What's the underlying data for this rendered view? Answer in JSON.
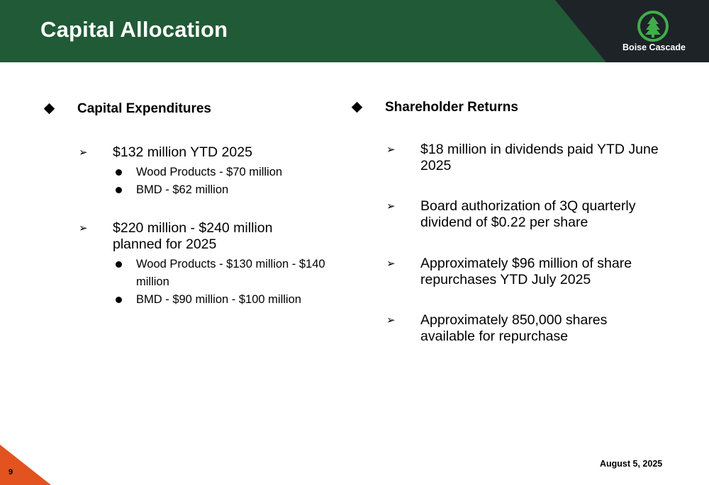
{
  "header": {
    "title": "Capital Allocation",
    "logo_text": "Boise Cascade",
    "logo_icon": "tree-icon",
    "colors": {
      "primary_green": "#215a36",
      "dark": "#1e2328",
      "logo_green": "#3fae49",
      "accent_orange": "#e2531f"
    }
  },
  "left": {
    "heading": "Capital Expenditures",
    "items": [
      {
        "text": "$132 million YTD 2025",
        "subs": [
          "Wood Products - $70 million",
          "BMD - $62 million"
        ]
      },
      {
        "text": "$220 million - $240 million planned for 2025",
        "subs": [
          "Wood Products - $130 million - $140 million",
          "BMD - $90 million - $100 million"
        ]
      }
    ]
  },
  "right": {
    "heading": "Shareholder Returns",
    "items": [
      {
        "text": "$18 million in dividends paid YTD June 2025"
      },
      {
        "text": "Board authorization of 3Q quarterly dividend of $0.22 per share"
      },
      {
        "text": "Approximately $96 million of share repurchases YTD July 2025"
      },
      {
        "text": "Approximately 850,000 shares available for repurchase"
      }
    ]
  },
  "footer": {
    "page_number": "9",
    "date": "August 5, 2025"
  }
}
